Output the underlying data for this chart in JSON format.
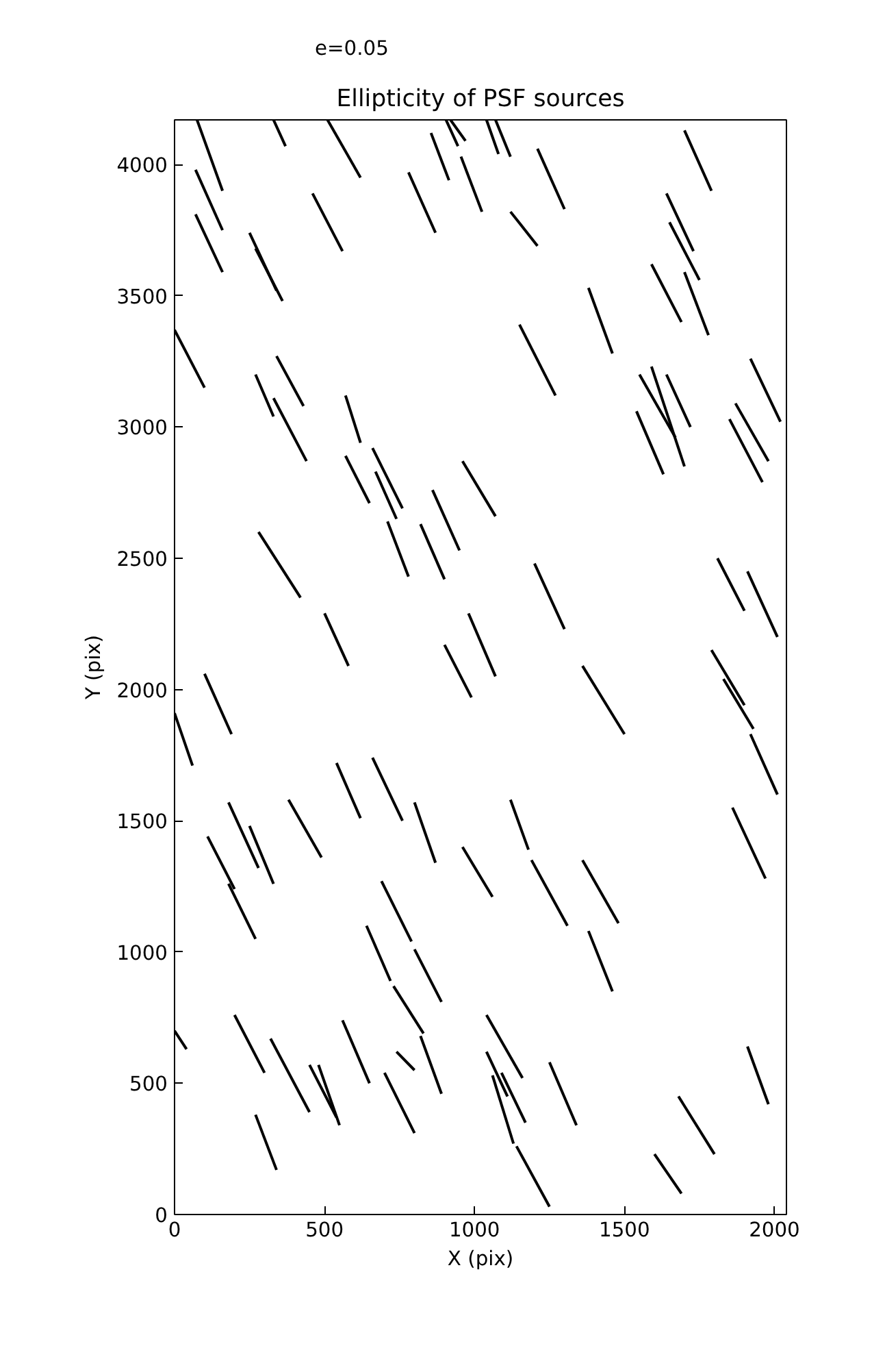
{
  "chart_data": {
    "type": "line",
    "title": "Ellipticity of PSF sources",
    "xlabel": "X (pix)",
    "ylabel": "Y (pix)",
    "xlim": [
      0,
      2040
    ],
    "ylim": [
      0,
      4170
    ],
    "xticks": [
      0,
      500,
      1000,
      1500,
      2000
    ],
    "yticks": [
      0,
      500,
      1000,
      1500,
      2000,
      2500,
      3000,
      3500,
      4000
    ],
    "grid": false,
    "legend": "top left",
    "marker": "none",
    "line_style": "solid",
    "series": [
      {
        "name": "e=0.05",
        "color": "#000000",
        "x": [
          75,
          160
        ],
        "values": [
          4170,
          3900
        ]
      },
      {
        "color": "#000000",
        "x": [
          330,
          370
        ],
        "values": [
          4170,
          4070
        ]
      },
      {
        "color": "#000000",
        "x": [
          510,
          620
        ],
        "values": [
          4170,
          3950
        ]
      },
      {
        "color": "#000000",
        "x": [
          855,
          915
        ],
        "values": [
          4120,
          3940
        ]
      },
      {
        "color": "#000000",
        "x": [
          905,
          945
        ],
        "values": [
          4170,
          4070
        ]
      },
      {
        "color": "#000000",
        "x": [
          920,
          970
        ],
        "values": [
          4170,
          4090
        ]
      },
      {
        "color": "#000000",
        "x": [
          955,
          1025
        ],
        "values": [
          4030,
          3820
        ]
      },
      {
        "color": "#000000",
        "x": [
          1040,
          1080
        ],
        "values": [
          4170,
          4040
        ]
      },
      {
        "color": "#000000",
        "x": [
          1070,
          1120
        ],
        "values": [
          4170,
          4030
        ]
      },
      {
        "color": "#000000",
        "x": [
          1210,
          1300
        ],
        "values": [
          4060,
          3830
        ]
      },
      {
        "color": "#000000",
        "x": [
          1700,
          1790
        ],
        "values": [
          4130,
          3900
        ]
      },
      {
        "color": "#000000",
        "x": [
          70,
          160
        ],
        "values": [
          3980,
          3750
        ]
      },
      {
        "color": "#000000",
        "x": [
          70,
          160
        ],
        "values": [
          3810,
          3590
        ]
      },
      {
        "color": "#000000",
        "x": [
          250,
          340
        ],
        "values": [
          3740,
          3520
        ]
      },
      {
        "color": "#000000",
        "x": [
          270,
          360
        ],
        "values": [
          3680,
          3480
        ]
      },
      {
        "color": "#000000",
        "x": [
          460,
          560
        ],
        "values": [
          3890,
          3670
        ]
      },
      {
        "color": "#000000",
        "x": [
          780,
          870
        ],
        "values": [
          3970,
          3740
        ]
      },
      {
        "color": "#000000",
        "x": [
          1120,
          1210
        ],
        "values": [
          3820,
          3690
        ]
      },
      {
        "color": "#000000",
        "x": [
          1380,
          1460
        ],
        "values": [
          3530,
          3280
        ]
      },
      {
        "color": "#000000",
        "x": [
          1640,
          1730
        ],
        "values": [
          3890,
          3670
        ]
      },
      {
        "color": "#000000",
        "x": [
          1650,
          1750
        ],
        "values": [
          3780,
          3560
        ]
      },
      {
        "color": "#000000",
        "x": [
          1590,
          1690
        ],
        "values": [
          3620,
          3400
        ]
      },
      {
        "color": "#000000",
        "x": [
          1700,
          1780
        ],
        "values": [
          3590,
          3350
        ]
      },
      {
        "color": "#000000",
        "x": [
          0,
          100
        ],
        "values": [
          3370,
          3150
        ]
      },
      {
        "color": "#000000",
        "x": [
          270,
          330
        ],
        "values": [
          3200,
          3040
        ]
      },
      {
        "color": "#000000",
        "x": [
          340,
          430
        ],
        "values": [
          3270,
          3080
        ]
      },
      {
        "color": "#000000",
        "x": [
          330,
          440
        ],
        "values": [
          3110,
          2870
        ]
      },
      {
        "color": "#000000",
        "x": [
          570,
          620
        ],
        "values": [
          3120,
          2940
        ]
      },
      {
        "color": "#000000",
        "x": [
          1150,
          1270
        ],
        "values": [
          3390,
          3120
        ]
      },
      {
        "color": "#000000",
        "x": [
          1540,
          1630
        ],
        "values": [
          3060,
          2820
        ]
      },
      {
        "color": "#000000",
        "x": [
          1550,
          1670
        ],
        "values": [
          3200,
          2960
        ]
      },
      {
        "color": "#000000",
        "x": [
          1590,
          1700
        ],
        "values": [
          3230,
          2850
        ]
      },
      {
        "color": "#000000",
        "x": [
          1640,
          1720
        ],
        "values": [
          3200,
          3000
        ]
      },
      {
        "color": "#000000",
        "x": [
          1920,
          2020
        ],
        "values": [
          3260,
          3020
        ]
      },
      {
        "color": "#000000",
        "x": [
          1870,
          1980
        ],
        "values": [
          3090,
          2870
        ]
      },
      {
        "color": "#000000",
        "x": [
          1850,
          1960
        ],
        "values": [
          3030,
          2790
        ]
      },
      {
        "color": "#000000",
        "x": [
          570,
          650
        ],
        "values": [
          2890,
          2710
        ]
      },
      {
        "color": "#000000",
        "x": [
          660,
          760
        ],
        "values": [
          2920,
          2690
        ]
      },
      {
        "color": "#000000",
        "x": [
          670,
          740
        ],
        "values": [
          2830,
          2650
        ]
      },
      {
        "color": "#000000",
        "x": [
          710,
          780
        ],
        "values": [
          2640,
          2430
        ]
      },
      {
        "color": "#000000",
        "x": [
          820,
          900
        ],
        "values": [
          2630,
          2420
        ]
      },
      {
        "color": "#000000",
        "x": [
          860,
          950
        ],
        "values": [
          2760,
          2530
        ]
      },
      {
        "color": "#000000",
        "x": [
          960,
          1070
        ],
        "values": [
          2870,
          2660
        ]
      },
      {
        "color": "#000000",
        "x": [
          280,
          420
        ],
        "values": [
          2600,
          2350
        ]
      },
      {
        "color": "#000000",
        "x": [
          500,
          580
        ],
        "values": [
          2290,
          2090
        ]
      },
      {
        "color": "#000000",
        "x": [
          1200,
          1300
        ],
        "values": [
          2480,
          2230
        ]
      },
      {
        "color": "#000000",
        "x": [
          1810,
          1900
        ],
        "values": [
          2500,
          2300
        ]
      },
      {
        "color": "#000000",
        "x": [
          1910,
          2010
        ],
        "values": [
          2450,
          2200
        ]
      },
      {
        "color": "#000000",
        "x": [
          900,
          990
        ],
        "values": [
          2170,
          1970
        ]
      },
      {
        "color": "#000000",
        "x": [
          980,
          1070
        ],
        "values": [
          2290,
          2050
        ]
      },
      {
        "color": "#000000",
        "x": [
          1360,
          1500
        ],
        "values": [
          2090,
          1830
        ]
      },
      {
        "color": "#000000",
        "x": [
          1790,
          1900
        ],
        "values": [
          2150,
          1940
        ]
      },
      {
        "color": "#000000",
        "x": [
          1830,
          1930
        ],
        "values": [
          2040,
          1850
        ]
      },
      {
        "color": "#000000",
        "x": [
          0,
          60
        ],
        "values": [
          1910,
          1710
        ]
      },
      {
        "color": "#000000",
        "x": [
          100,
          190
        ],
        "values": [
          2060,
          1830
        ]
      },
      {
        "color": "#000000",
        "x": [
          540,
          620
        ],
        "values": [
          1720,
          1510
        ]
      },
      {
        "color": "#000000",
        "x": [
          660,
          760
        ],
        "values": [
          1740,
          1500
        ]
      },
      {
        "color": "#000000",
        "x": [
          800,
          870
        ],
        "values": [
          1570,
          1340
        ]
      },
      {
        "color": "#000000",
        "x": [
          1120,
          1180
        ],
        "values": [
          1580,
          1390
        ]
      },
      {
        "color": "#000000",
        "x": [
          1920,
          2010
        ],
        "values": [
          1830,
          1600
        ]
      },
      {
        "color": "#000000",
        "x": [
          1860,
          1970
        ],
        "values": [
          1550,
          1280
        ]
      },
      {
        "color": "#000000",
        "x": [
          180,
          280
        ],
        "values": [
          1570,
          1320
        ]
      },
      {
        "color": "#000000",
        "x": [
          250,
          330
        ],
        "values": [
          1480,
          1260
        ]
      },
      {
        "color": "#000000",
        "x": [
          380,
          490
        ],
        "values": [
          1580,
          1360
        ]
      },
      {
        "color": "#000000",
        "x": [
          110,
          200
        ],
        "values": [
          1440,
          1240
        ]
      },
      {
        "color": "#000000",
        "x": [
          180,
          270
        ],
        "values": [
          1260,
          1050
        ]
      },
      {
        "color": "#000000",
        "x": [
          690,
          790
        ],
        "values": [
          1270,
          1040
        ]
      },
      {
        "color": "#000000",
        "x": [
          960,
          1060
        ],
        "values": [
          1400,
          1210
        ]
      },
      {
        "color": "#000000",
        "x": [
          1190,
          1310
        ],
        "values": [
          1350,
          1100
        ]
      },
      {
        "color": "#000000",
        "x": [
          1360,
          1480
        ],
        "values": [
          1350,
          1110
        ]
      },
      {
        "color": "#000000",
        "x": [
          1380,
          1460
        ],
        "values": [
          1080,
          850
        ]
      },
      {
        "color": "#000000",
        "x": [
          640,
          720
        ],
        "values": [
          1100,
          890
        ]
      },
      {
        "color": "#000000",
        "x": [
          800,
          890
        ],
        "values": [
          1010,
          810
        ]
      },
      {
        "color": "#000000",
        "x": [
          0,
          40
        ],
        "values": [
          700,
          630
        ]
      },
      {
        "color": "#000000",
        "x": [
          200,
          300
        ],
        "values": [
          760,
          540
        ]
      },
      {
        "color": "#000000",
        "x": [
          320,
          450
        ],
        "values": [
          670,
          390
        ]
      },
      {
        "color": "#000000",
        "x": [
          450,
          540
        ],
        "values": [
          570,
          370
        ]
      },
      {
        "color": "#000000",
        "x": [
          480,
          550
        ],
        "values": [
          570,
          340
        ]
      },
      {
        "color": "#000000",
        "x": [
          270,
          340
        ],
        "values": [
          380,
          170
        ]
      },
      {
        "color": "#000000",
        "x": [
          560,
          650
        ],
        "values": [
          740,
          500
        ]
      },
      {
        "color": "#000000",
        "x": [
          730,
          830
        ],
        "values": [
          870,
          690
        ]
      },
      {
        "color": "#000000",
        "x": [
          740,
          800
        ],
        "values": [
          620,
          550
        ]
      },
      {
        "color": "#000000",
        "x": [
          820,
          890
        ],
        "values": [
          680,
          460
        ]
      },
      {
        "color": "#000000",
        "x": [
          1040,
          1160
        ],
        "values": [
          760,
          520
        ]
      },
      {
        "color": "#000000",
        "x": [
          1040,
          1110
        ],
        "values": [
          620,
          450
        ]
      },
      {
        "color": "#000000",
        "x": [
          1060,
          1130
        ],
        "values": [
          530,
          270
        ]
      },
      {
        "color": "#000000",
        "x": [
          1090,
          1170
        ],
        "values": [
          540,
          350
        ]
      },
      {
        "color": "#000000",
        "x": [
          1250,
          1340
        ],
        "values": [
          580,
          340
        ]
      },
      {
        "color": "#000000",
        "x": [
          1140,
          1250
        ],
        "values": [
          260,
          30
        ]
      },
      {
        "color": "#000000",
        "x": [
          700,
          800
        ],
        "values": [
          540,
          310
        ]
      },
      {
        "color": "#000000",
        "x": [
          1600,
          1690
        ],
        "values": [
          230,
          80
        ]
      },
      {
        "color": "#000000",
        "x": [
          1680,
          1800
        ],
        "values": [
          450,
          230
        ]
      },
      {
        "color": "#000000",
        "x": [
          1910,
          1980
        ],
        "values": [
          640,
          420
        ]
      }
    ]
  }
}
